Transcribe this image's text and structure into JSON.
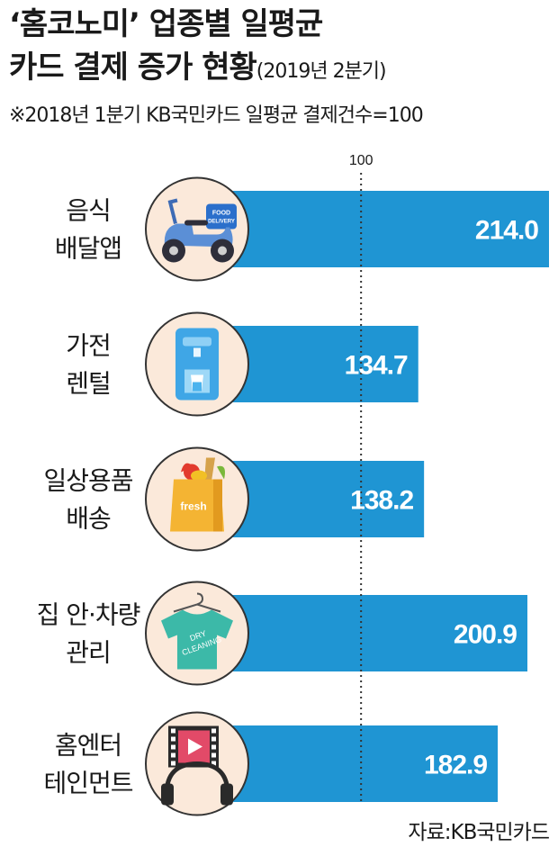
{
  "header": {
    "title_line1": "‘홈코노미’ 업종별 일평균",
    "title_line2": "카드 결제 증가 현황",
    "title_period": "(2019년 2분기)",
    "note": "※2018년 1분기 KB국민카드 일평균 결제건수=100"
  },
  "source": "자료:KB국민카드",
  "colors": {
    "bar": "#1f95d3",
    "circle_fill": "#fbe9da",
    "circle_stroke": "#333333",
    "reference_line": "#333333",
    "value_text": "#ffffff"
  },
  "chart_data": {
    "type": "bar",
    "orientation": "horizontal",
    "title": "‘홈코노미’ 업종별 일평균 카드 결제 증가 현황(2019년 2분기)",
    "reference": {
      "value": 100,
      "label": "100"
    },
    "categories": [
      {
        "lines": [
          "음식",
          "배달앱"
        ],
        "icon": "scooter-icon"
      },
      {
        "lines": [
          "가전",
          "렌털"
        ],
        "icon": "water-purifier-icon"
      },
      {
        "lines": [
          "일상용품",
          "배송"
        ],
        "icon": "grocery-bag-icon"
      },
      {
        "lines": [
          "집 안·차량",
          "관리"
        ],
        "icon": "dry-cleaning-shirt-icon"
      },
      {
        "lines": [
          "홈엔터",
          "테인먼트"
        ],
        "icon": "video-headphones-icon"
      }
    ],
    "values": [
      214.0,
      134.7,
      138.2,
      200.9,
      182.9
    ],
    "value_labels": [
      "214.0",
      "134.7",
      "138.2",
      "200.9",
      "182.9"
    ],
    "icon_texts": {
      "food_delivery": [
        "FOOD",
        "DELIVERY"
      ],
      "fresh": "fresh",
      "dry_cleaning": [
        "DRY",
        "CLEANING"
      ]
    },
    "grid": false,
    "legend": "none"
  }
}
